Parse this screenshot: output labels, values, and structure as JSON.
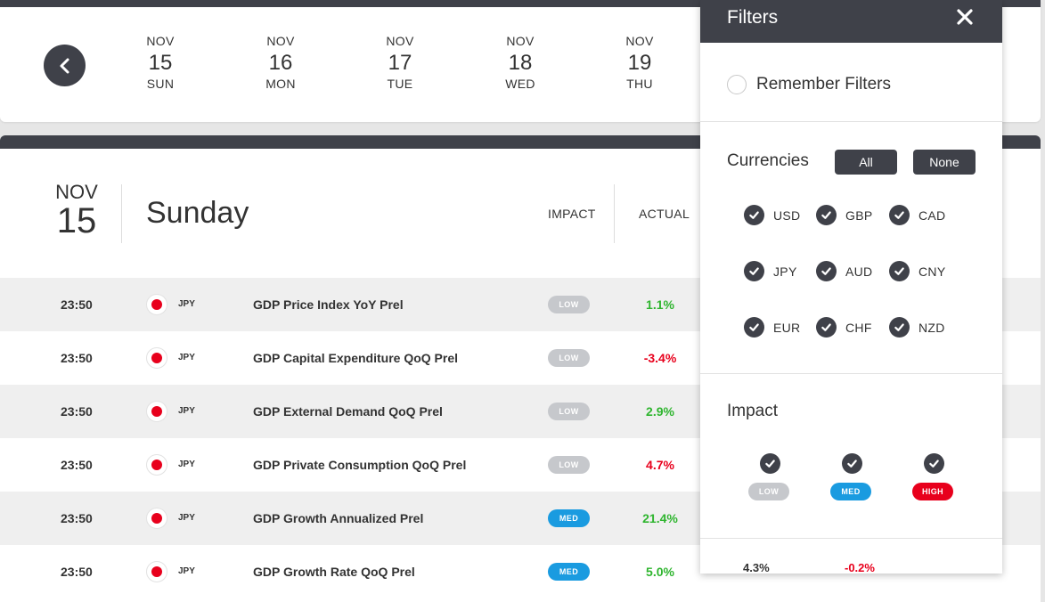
{
  "date_strip": {
    "prev_icon": "chevron-left-icon",
    "days": [
      {
        "month": "NOV",
        "day": "15",
        "weekday": "SUN"
      },
      {
        "month": "NOV",
        "day": "16",
        "weekday": "MON"
      },
      {
        "month": "NOV",
        "day": "17",
        "weekday": "TUE"
      },
      {
        "month": "NOV",
        "day": "18",
        "weekday": "WED"
      },
      {
        "month": "NOV",
        "day": "19",
        "weekday": "THU"
      }
    ]
  },
  "day_header": {
    "month": "NOV",
    "day": "15",
    "day_name": "Sunday",
    "col_impact": "IMPACT",
    "col_actual": "ACTUAL"
  },
  "events": [
    {
      "time": "23:50",
      "currency": "JPY",
      "name": "GDP Price Index YoY Prel",
      "impact": "LOW",
      "actual": "1.1%"
    },
    {
      "time": "23:50",
      "currency": "JPY",
      "name": "GDP Capital Expenditure QoQ Prel",
      "impact": "LOW",
      "actual": "-3.4%"
    },
    {
      "time": "23:50",
      "currency": "JPY",
      "name": "GDP External Demand QoQ Prel",
      "impact": "LOW",
      "actual": "2.9%"
    },
    {
      "time": "23:50",
      "currency": "JPY",
      "name": "GDP Private Consumption QoQ Prel",
      "impact": "LOW",
      "actual": "4.7%"
    },
    {
      "time": "23:50",
      "currency": "JPY",
      "name": "GDP Growth Annualized Prel",
      "impact": "MED",
      "actual": "21.4%"
    },
    {
      "time": "23:50",
      "currency": "JPY",
      "name": "GDP Growth Rate QoQ Prel",
      "impact": "MED",
      "actual": "5.0%"
    }
  ],
  "filters": {
    "title": "Filters",
    "close_icon": "close-icon",
    "remember_label": "Remember Filters",
    "remember_checked": false,
    "currencies_title": "Currencies",
    "all_label": "All",
    "none_label": "None",
    "currencies": [
      {
        "code": "USD",
        "checked": true
      },
      {
        "code": "GBP",
        "checked": true
      },
      {
        "code": "CAD",
        "checked": true
      },
      {
        "code": "JPY",
        "checked": true
      },
      {
        "code": "AUD",
        "checked": true
      },
      {
        "code": "CNY",
        "checked": true
      },
      {
        "code": "EUR",
        "checked": true
      },
      {
        "code": "CHF",
        "checked": true
      },
      {
        "code": "NZD",
        "checked": true
      }
    ],
    "impact_title": "Impact",
    "impacts": [
      {
        "label": "LOW",
        "checked": true
      },
      {
        "label": "MED",
        "checked": true
      },
      {
        "label": "HIGH",
        "checked": true
      }
    ],
    "peek_left": "4.3%",
    "peek_right": "-0.2%"
  },
  "colors": {
    "dark": "#3f4149",
    "positive": "#2fb52f",
    "negative": "#e8001c",
    "low": "#c6c8cc",
    "med": "#1a9be0",
    "high": "#e8001c"
  }
}
